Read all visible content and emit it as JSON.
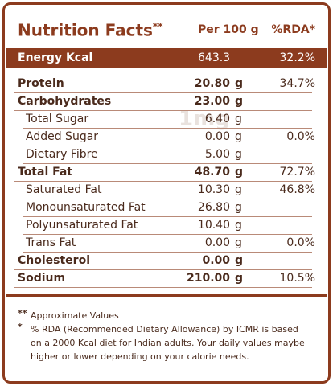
{
  "header": {
    "title": "Nutrition Facts",
    "title_mark": "**",
    "per": "Per 100 g",
    "rda": "%RDA*"
  },
  "energy": {
    "label": "Energy Kcal",
    "amount": "643.3",
    "rda": "32.2%"
  },
  "watermark": "1mg",
  "items": [
    {
      "label": "Protein",
      "amount": "20.80",
      "unit": "g",
      "rda": "34.7%"
    },
    {
      "label": "Carbohydrates",
      "amount": "23.00",
      "unit": "g",
      "sub": [
        {
          "label": "Total Sugar",
          "amount": "6.40",
          "unit": "g"
        },
        {
          "label": "Added Sugar",
          "amount": "0.00",
          "unit": "g",
          "rda": "0.0%"
        },
        {
          "label": "Dietary Fibre",
          "amount": "5.00",
          "unit": "g"
        }
      ]
    },
    {
      "label": "Total Fat",
      "amount": "48.70",
      "unit": "g",
      "rda": "72.7%",
      "sub": [
        {
          "label": "Saturated Fat",
          "amount": "10.30",
          "unit": "g",
          "rda": "46.8%"
        },
        {
          "label": "Monounsaturated Fat",
          "amount": "26.80",
          "unit": "g"
        },
        {
          "label": "Polyunsaturated Fat",
          "amount": "10.40",
          "unit": "g"
        },
        {
          "label": "Trans Fat",
          "amount": "0.00",
          "unit": "g",
          "rda": "0.0%"
        }
      ]
    },
    {
      "label": "Cholesterol",
      "amount": "0.00",
      "unit": "g"
    },
    {
      "label": "Sodium",
      "amount": "210.00",
      "unit": "g",
      "rda": "10.5%"
    }
  ],
  "notes": [
    {
      "mark": "**",
      "lines": [
        "Approximate Values"
      ]
    },
    {
      "mark": "*",
      "lines": [
        "% RDA (Recommended Dietary Allowance) by ICMR is based",
        "on a 2000 Kcal diet for Indian adults. Your daily values maybe",
        "higher or lower depending on your calorie needs."
      ]
    }
  ]
}
